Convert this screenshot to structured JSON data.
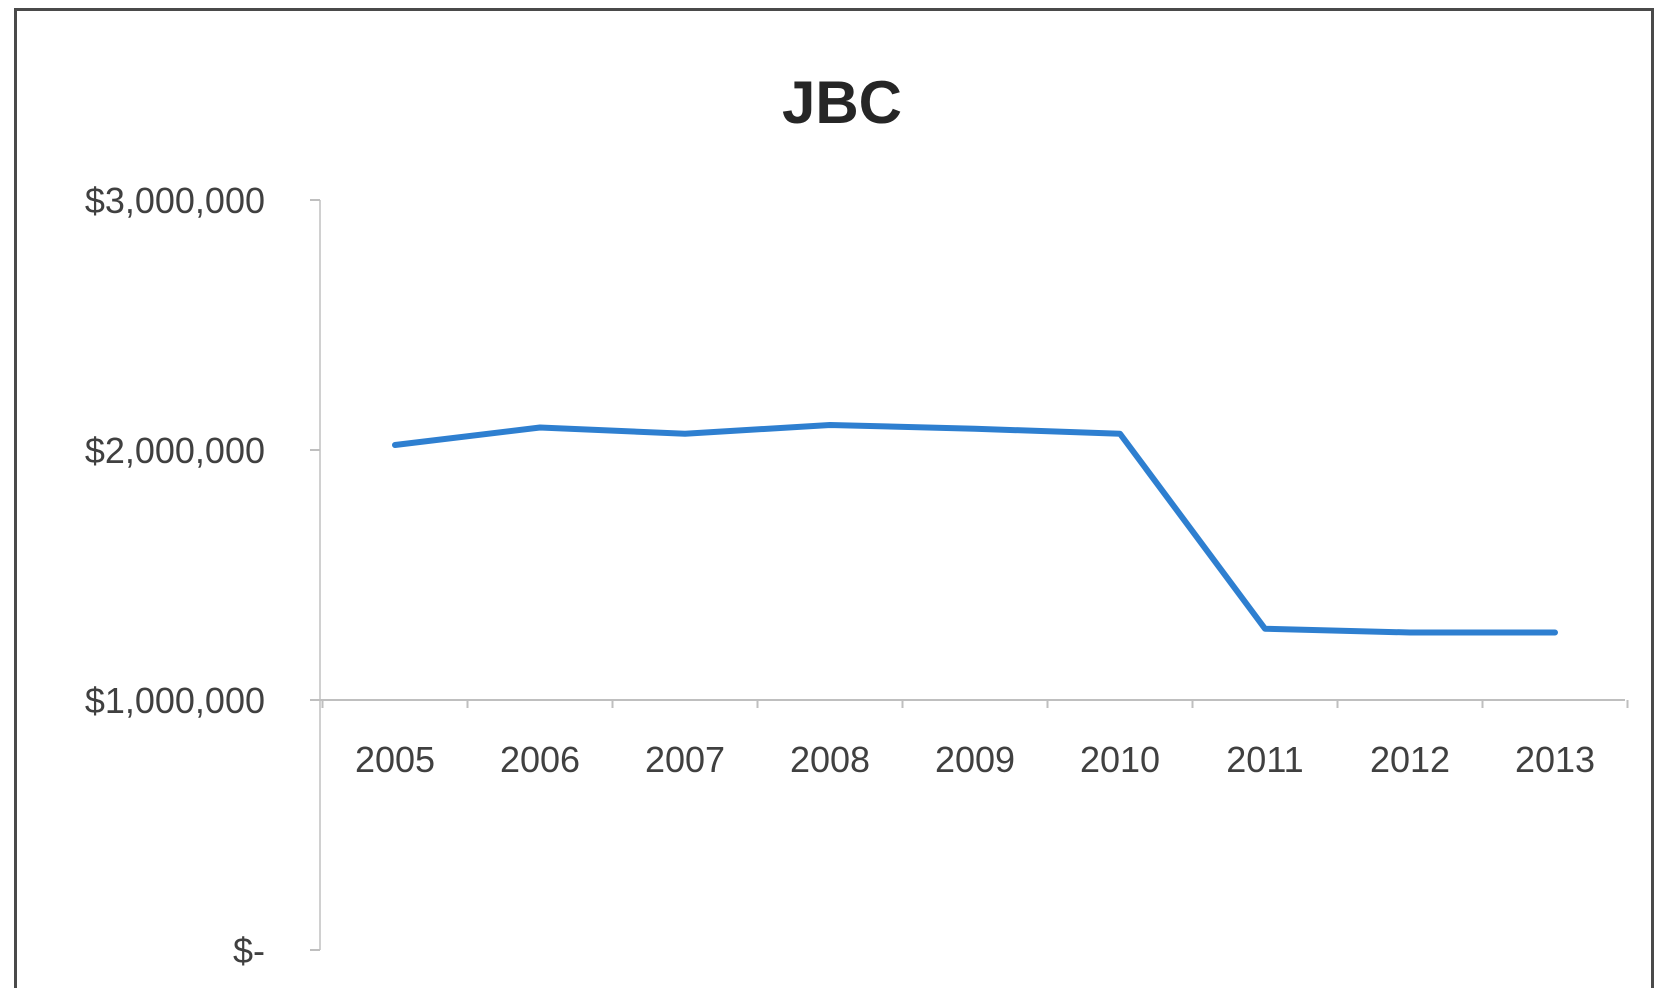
{
  "chart_data": {
    "type": "line",
    "title": "JBC",
    "xlabel": "",
    "ylabel": "",
    "categories": [
      "2005",
      "2006",
      "2007",
      "2008",
      "2009",
      "2010",
      "2011",
      "2012",
      "2013"
    ],
    "series": [
      {
        "values": [
          2020000,
          2090000,
          2065000,
          2100000,
          2085000,
          2065000,
          1285000,
          1270000,
          1270000
        ],
        "color": "#2e7fd0"
      }
    ],
    "ylim": [
      0,
      3000000
    ],
    "yticks": [
      0,
      1000000,
      2000000,
      3000000
    ],
    "ytick_labels": [
      "$-",
      "$1,000,000",
      "$2,000,000",
      "$3,000,000"
    ],
    "x_axis_crosses_at": 1000000,
    "grid": false,
    "legend": "none"
  }
}
